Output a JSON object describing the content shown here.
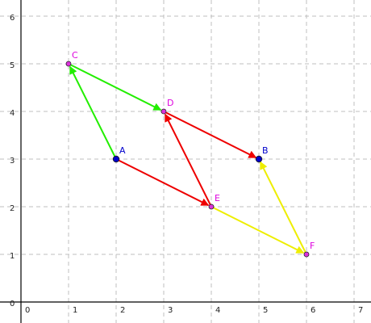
{
  "axes": {
    "x_range": [
      0,
      7
    ],
    "y_range": [
      0,
      6
    ],
    "x_ticks": [
      "0",
      "1",
      "2",
      "3",
      "4",
      "5",
      "6",
      "7"
    ],
    "y_ticks": [
      "0",
      "1",
      "2",
      "3",
      "4",
      "5",
      "6"
    ],
    "grid": true
  },
  "colors": {
    "red": "#ee0000",
    "green": "#22ee00",
    "yellow": "#eeee00",
    "blue_point": "#0000cc",
    "magenta_point": "#dd33dd",
    "blue_label": "#0000cc",
    "magenta_label": "#dd00dd"
  },
  "points": [
    {
      "label": "A",
      "x": 2,
      "y": 3,
      "style": "blue"
    },
    {
      "label": "B",
      "x": 5,
      "y": 3,
      "style": "blue"
    },
    {
      "label": "C",
      "x": 1,
      "y": 5,
      "style": "magenta"
    },
    {
      "label": "D",
      "x": 3,
      "y": 4,
      "style": "magenta"
    },
    {
      "label": "E",
      "x": 4,
      "y": 2,
      "style": "magenta"
    },
    {
      "label": "F",
      "x": 6,
      "y": 1,
      "style": "magenta"
    }
  ],
  "vectors": [
    {
      "from": "A",
      "to": "E",
      "color": "red"
    },
    {
      "from": "D",
      "to": "B",
      "color": "red"
    },
    {
      "from": "E",
      "to": "D",
      "color": "red"
    },
    {
      "from": "A",
      "to": "C",
      "color": "green"
    },
    {
      "from": "C",
      "to": "D",
      "color": "green"
    },
    {
      "from": "E",
      "to": "F",
      "color": "yellow"
    },
    {
      "from": "F",
      "to": "B",
      "color": "yellow"
    }
  ]
}
